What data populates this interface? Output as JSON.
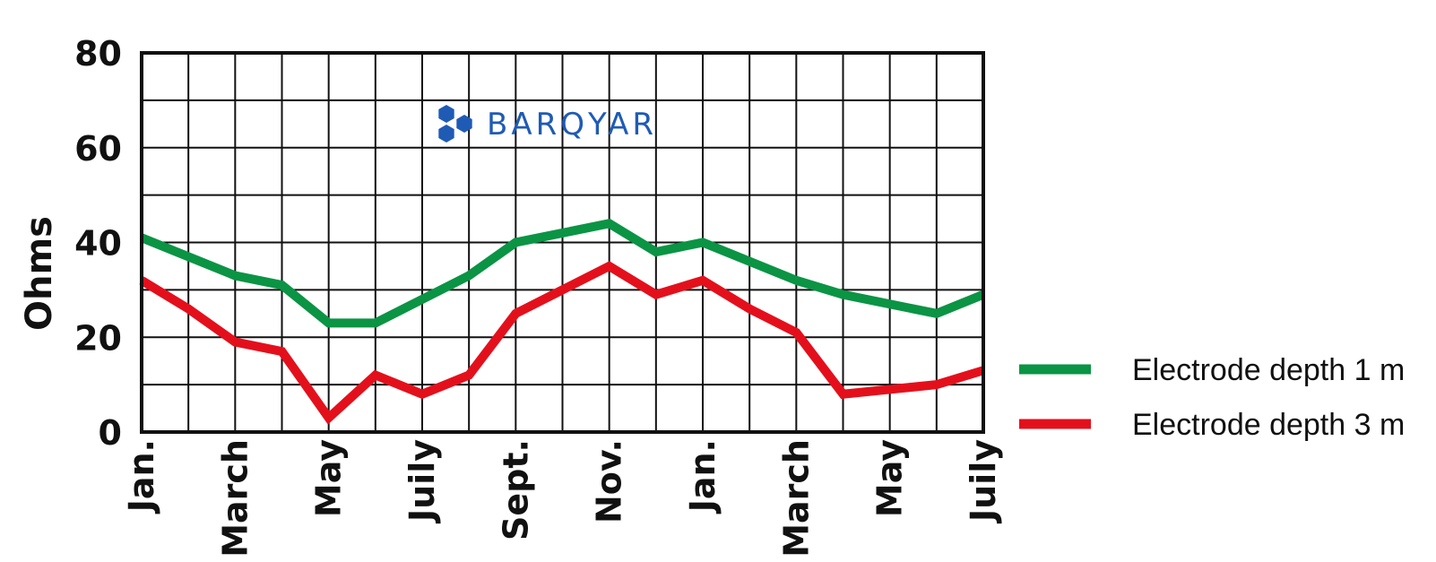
{
  "chart_data": {
    "type": "line",
    "ylabel": "Ohms",
    "ylim": [
      0,
      80
    ],
    "yticks": [
      "0",
      "20",
      "40",
      "60",
      "80"
    ],
    "x_labels": [
      "Jan.",
      "",
      "March",
      "",
      "May",
      "",
      "Juily",
      "",
      "Sept.",
      "",
      "Nov.",
      "",
      "Jan.",
      "",
      "March",
      "",
      "May",
      "",
      "Juily"
    ],
    "grid": true,
    "legend_position": "bottom-right",
    "series": [
      {
        "name": "Electrode depth 1 m",
        "color": "#0a9444",
        "values": [
          41,
          37,
          33,
          31,
          23,
          23,
          28,
          33,
          40,
          42,
          44,
          38,
          40,
          36,
          32,
          29,
          27,
          25,
          29
        ]
      },
      {
        "name": "Electrode depth 3 m",
        "color": "#e3101c",
        "values": [
          32,
          26,
          19,
          17,
          3,
          12,
          8,
          12,
          25,
          30,
          35,
          29,
          32,
          26,
          21,
          8,
          9,
          10,
          13
        ]
      }
    ]
  },
  "watermark": {
    "text": "BARQYAR",
    "color": "#1f5bb5"
  }
}
